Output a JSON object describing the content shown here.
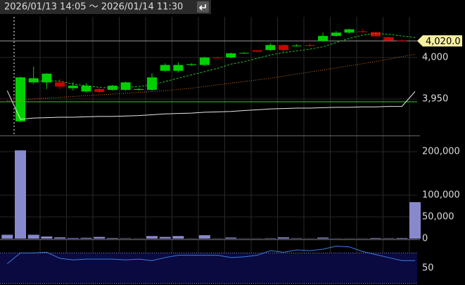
{
  "header": {
    "range": "2026/01/13 14:05 ～ 2026/01/14 11:30"
  },
  "chart_data": [
    {
      "type": "candlestick",
      "ylim": [
        3906,
        4049
      ],
      "yticks": [
        {
          "value": 4000,
          "label": "4,000"
        },
        {
          "value": 3950,
          "label": "3,950"
        }
      ],
      "last_price": {
        "value": 4020,
        "label": "4,020.0"
      },
      "level_line": 3946.6,
      "up_color": "#00d000",
      "down_color": "#d00000",
      "open": [
        null,
        3923,
        3970,
        3970,
        3970,
        3963,
        3959,
        3962,
        3961,
        3961,
        3961,
        3961,
        3984,
        3984,
        3991,
        3991,
        4000,
        4000,
        4005.5,
        4008.5,
        4009,
        4015,
        4014,
        4015,
        4020,
        4026,
        4030,
        4031.5,
        4030.5,
        4024.5,
        4020.5,
        null
      ],
      "high": [
        null,
        3977,
        3989,
        3981,
        3974,
        3970,
        3969,
        3963,
        3967,
        3971,
        3963,
        3981,
        3993,
        3994,
        3993,
        4001,
        4001,
        4006,
        4006.5,
        4009,
        4017,
        4016,
        4016,
        4017,
        4030,
        4032,
        4034.5,
        4034,
        4031,
        4025,
        4022,
        null
      ],
      "low": [
        null,
        3922,
        3968,
        3962,
        3962,
        3960,
        3958,
        3957,
        3960,
        3960,
        3960,
        3960,
        3983,
        3982,
        3990,
        3990,
        3999,
        3999,
        4004.5,
        4006,
        4008,
        4005,
        4013,
        4013,
        4019,
        4025,
        4029,
        4030,
        4025,
        4019,
        4019,
        null
      ],
      "close": [
        null,
        3976,
        3975,
        3980.5,
        3965,
        3966,
        3966,
        3958.5,
        3966,
        3970,
        3962,
        3976,
        3991,
        3991,
        3992,
        4000,
        3999.5,
        4005,
        4005.5,
        4007,
        4015,
        4009,
        4014.5,
        4014,
        4026,
        4030,
        4034,
        4031,
        4025.5,
        4020.5,
        4020,
        null
      ],
      "series": [
        {
          "color": "#22c022",
          "style": "dashed",
          "values": [
            null,
            null,
            3971,
            3972,
            3971.5,
            3968,
            3966,
            3964,
            3963,
            3964,
            3965,
            3967,
            3971,
            3975,
            3979,
            3983,
            3987,
            3992,
            3995,
            3999,
            4003,
            4006,
            4008,
            4010,
            4013,
            4018,
            4023,
            4027,
            4029,
            4028,
            4026,
            4024
          ]
        },
        {
          "color": "#d07020",
          "style": "dotted",
          "values": [
            3948,
            3949,
            3950,
            3951,
            3952,
            3953,
            3954,
            3955,
            3956,
            3957,
            3958,
            3959,
            3960,
            3961.5,
            3963,
            3965,
            3967,
            3969,
            3971,
            3973,
            3975,
            3977.5,
            3980,
            3982.5,
            3985,
            3987.5,
            3990,
            3992.5,
            3995,
            3998,
            4001,
            4004
          ]
        },
        {
          "color": "#e8e8e8",
          "style": "solid",
          "values": [
            3960,
            3925.5,
            3927,
            3927.5,
            3928,
            3928,
            3928.5,
            3929,
            3929,
            3929.5,
            3930,
            3931,
            3932,
            3932.5,
            3933,
            3934,
            3934.5,
            3935,
            3936,
            3937,
            3938,
            3938.5,
            3939,
            3939,
            3939.5,
            3940,
            3940,
            3940.5,
            3940.5,
            3941,
            3941,
            3959
          ]
        }
      ]
    },
    {
      "type": "bar",
      "color": "#8888cc",
      "ylim": [
        0,
        234000
      ],
      "yticks": [
        {
          "value": 200000,
          "label": "200,000"
        },
        {
          "value": 100000,
          "label": "100,000"
        },
        {
          "value": 50000,
          "label": "50,000"
        },
        0
      ],
      "values": [
        9000,
        203000,
        9000,
        5000,
        3000,
        1500,
        2000,
        4000,
        1500,
        1000,
        500,
        6000,
        4000,
        6000,
        500,
        8000,
        500,
        2500,
        500,
        500,
        1000,
        3000,
        1000,
        500,
        2500,
        500,
        500,
        500,
        1500,
        1000,
        1500,
        84000
      ]
    },
    {
      "type": "line",
      "color": "#3a7ee0",
      "ylim": [
        29,
        86
      ],
      "yticks": [
        50
      ],
      "bands": [
        30,
        70
      ],
      "values": [
        56,
        70,
        70,
        71,
        63,
        61,
        62,
        62,
        62,
        61,
        62,
        60,
        64,
        67,
        67,
        67,
        67,
        64,
        65,
        67,
        73,
        71,
        74,
        73,
        75,
        79,
        78,
        72,
        68,
        64,
        60,
        60
      ]
    }
  ]
}
